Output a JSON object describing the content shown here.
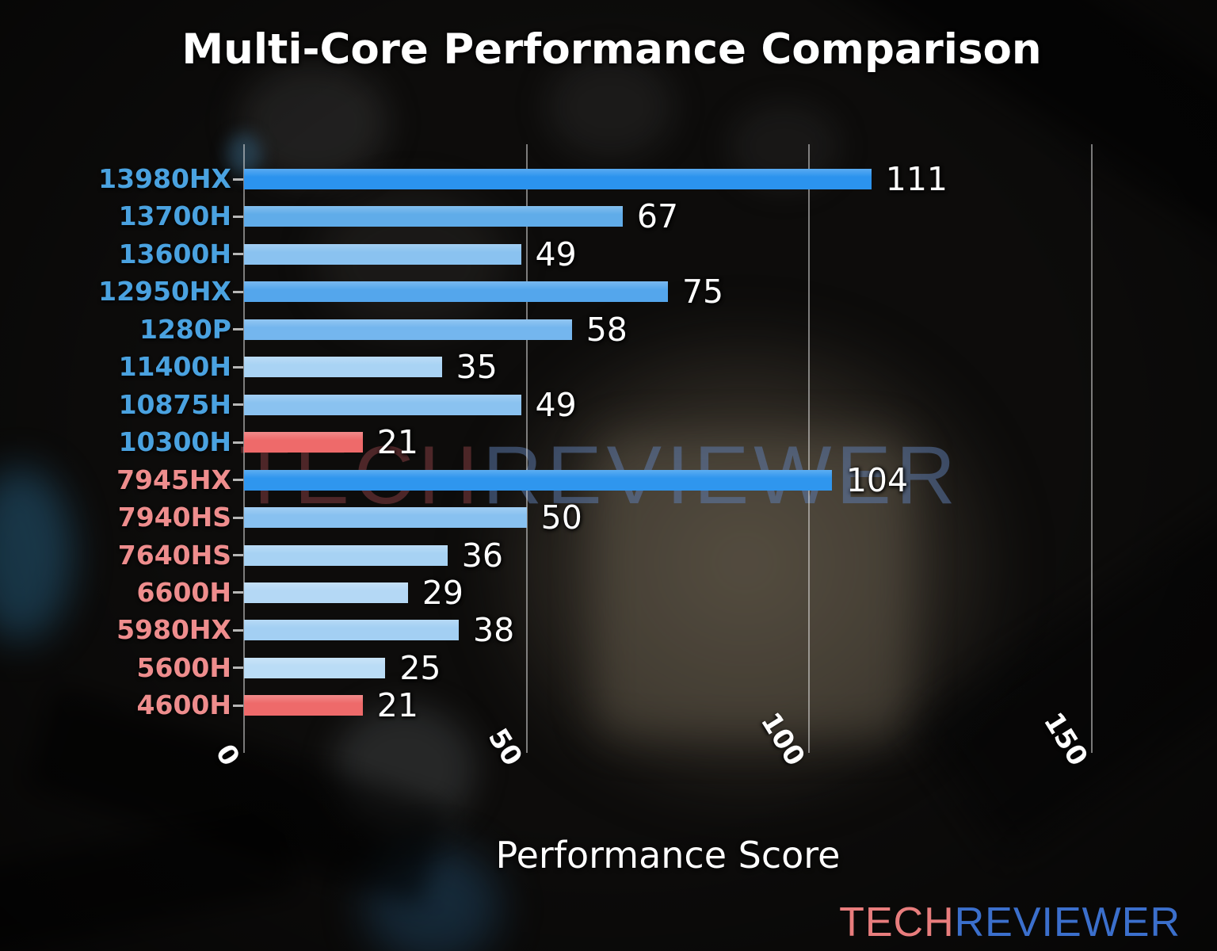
{
  "chart_data": {
    "type": "bar",
    "orientation": "horizontal",
    "title": "Multi-Core Performance Comparison",
    "xlabel": "Performance Score",
    "xticks": [
      0,
      50,
      100,
      150
    ],
    "xlim": [
      0,
      157
    ],
    "grid": "vertical gridlines at ticks",
    "legend": "none",
    "categories": [
      "13980HX",
      "13700H",
      "13600H",
      "12950HX",
      "1280P",
      "11400H",
      "10875H",
      "10300H",
      "7945HX",
      "7940HS",
      "7640HS",
      "6600H",
      "5980HX",
      "5600H",
      "4600H"
    ],
    "values": [
      111,
      67,
      49,
      75,
      58,
      35,
      49,
      21,
      104,
      50,
      36,
      29,
      38,
      25,
      21
    ],
    "rows": [
      {
        "label": "13980HX",
        "value": 111,
        "brand": "intel",
        "bar_color": "#2b93ee",
        "label_color": "#4aa2e0"
      },
      {
        "label": "13700H",
        "value": 67,
        "brand": "intel",
        "bar_color": "#60ace9",
        "label_color": "#4aa2e0"
      },
      {
        "label": "13600H",
        "value": 49,
        "brand": "intel",
        "bar_color": "#8ac2f0",
        "label_color": "#4aa2e0"
      },
      {
        "label": "12950HX",
        "value": 75,
        "brand": "intel",
        "bar_color": "#54a6ec",
        "label_color": "#4aa2e0"
      },
      {
        "label": "1280P",
        "value": 58,
        "brand": "intel",
        "bar_color": "#74b6ee",
        "label_color": "#4aa2e0"
      },
      {
        "label": "11400H",
        "value": 35,
        "brand": "intel",
        "bar_color": "#a9d3f4",
        "label_color": "#4aa2e0"
      },
      {
        "label": "10875H",
        "value": 49,
        "brand": "intel",
        "bar_color": "#8ac2f0",
        "label_color": "#4aa2e0"
      },
      {
        "label": "10300H",
        "value": 21,
        "brand": "intel",
        "bar_color": "#ee6a6a",
        "label_color": "#4aa2e0"
      },
      {
        "label": "7945HX",
        "value": 104,
        "brand": "amd",
        "bar_color": "#2f96ee",
        "label_color": "#ee8d8d"
      },
      {
        "label": "7940HS",
        "value": 50,
        "brand": "amd",
        "bar_color": "#88c1f0",
        "label_color": "#ee8d8d"
      },
      {
        "label": "7640HS",
        "value": 36,
        "brand": "amd",
        "bar_color": "#a7d2f3",
        "label_color": "#ee8d8d"
      },
      {
        "label": "6600H",
        "value": 29,
        "brand": "amd",
        "bar_color": "#b4d8f5",
        "label_color": "#ee8d8d"
      },
      {
        "label": "5980HX",
        "value": 38,
        "brand": "amd",
        "bar_color": "#a3cff3",
        "label_color": "#ee8d8d"
      },
      {
        "label": "5600H",
        "value": 25,
        "brand": "amd",
        "bar_color": "#badcf6",
        "label_color": "#ee8d8d"
      },
      {
        "label": "4600H",
        "value": 21,
        "brand": "amd",
        "bar_color": "#ee6a6a",
        "label_color": "#ee8d8d"
      }
    ],
    "highlight_color_low": "#ee6a6a",
    "value_label_color": "#ffffff",
    "gridline_color": "rgba(235,235,235,0.5)"
  },
  "watermark": {
    "left": "TECH",
    "right": "REVIEWER"
  },
  "logo": {
    "left": "TECH",
    "right": "REVIEWER",
    "left_color": "#e87d7d",
    "right_color": "#3b6fcc"
  }
}
